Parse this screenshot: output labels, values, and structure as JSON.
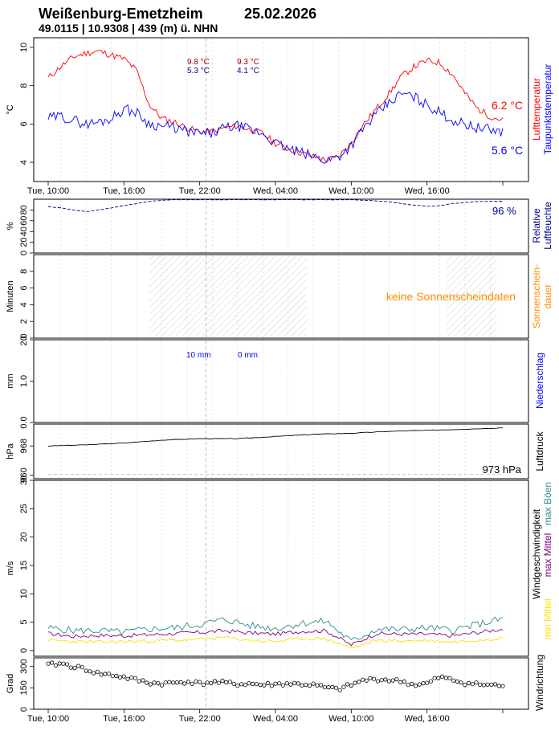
{
  "header": {
    "station": "Weißenburg-Emetzheim",
    "date": "25.02.2026",
    "coords": "49.0115 | 10.9308 | 439 (m) ü. NHN"
  },
  "colors": {
    "temp": "#ff0000",
    "dew": "#0000ff",
    "humidity": "#00008b",
    "sun": "#ff8c00",
    "precip": "#0000ff",
    "pressure": "#000000",
    "gust": "#2e8b8b",
    "wind_max": "#800080",
    "wind_min": "#ffe000",
    "dir": "#000000"
  },
  "x_axis": {
    "ticks": [
      "Tue, 10:00",
      "Tue, 16:00",
      "Tue, 22:00",
      "Wed, 04:00",
      "Wed, 10:00",
      "Wed, 16:00"
    ]
  },
  "panels": {
    "temperature": {
      "ylabel": "°C",
      "ticks": [
        "4",
        "6",
        "8",
        "10"
      ],
      "right_label_1": "Lufttemperatur",
      "right_label_2": "Taupunktstemperatur",
      "ann_temp_left": "9.8 °C",
      "ann_temp_right": "9.3 °C",
      "ann_dew_left": "5.3 °C",
      "ann_dew_right": "4.1 °C",
      "last_temp": "6.2 °C",
      "last_dew": "5.6 °C"
    },
    "humidity": {
      "ylabel": "%",
      "ticks": [
        "0",
        "20",
        "40",
        "60",
        "80"
      ],
      "right_label_1": "Relative",
      "right_label_2": "Luftfeuchte",
      "last": "96 %"
    },
    "sunshine": {
      "ylabel": "Minuten",
      "ticks": [
        "0",
        "2",
        "4",
        "6",
        "8"
      ],
      "right_label_1": "Sonnenschein-",
      "right_label_2": "dauer",
      "note": "keine Sonnenscheindaten"
    },
    "precipitation": {
      "ylabel": "mm",
      "ticks": [
        "0.0",
        "1.0",
        "2.0"
      ],
      "right_label": "Niederschlag",
      "ann_left": "10 mm",
      "ann_right": "0 mm"
    },
    "pressure": {
      "ylabel": "hPa",
      "ticks": [
        "960",
        "968"
      ],
      "right_label": "Luftdruck",
      "last": "973 hPa"
    },
    "wind": {
      "ylabel": "m/s",
      "ticks": [
        "0",
        "5",
        "10",
        "15",
        "20",
        "25",
        "30"
      ],
      "right_label_1": "Windgeschwindigkeit",
      "legend_gust": "max Böen",
      "legend_max": "max Mittel",
      "legend_min": "min Mittel"
    },
    "direction": {
      "ylabel": "Grad",
      "ticks": [
        "0",
        "150",
        "300"
      ],
      "right_label": "Windrichtung"
    }
  },
  "chart_data": [
    {
      "type": "line",
      "x_unit": "hours since Tue 10:00",
      "x": [
        0,
        1,
        2,
        3,
        4,
        5,
        6,
        7,
        8,
        9,
        10,
        11,
        12,
        13,
        14,
        15,
        16,
        17,
        18,
        19,
        20,
        21,
        22,
        23,
        24,
        25,
        26,
        27,
        28,
        29,
        30,
        31,
        32,
        33,
        34,
        35,
        36
      ],
      "series": [
        {
          "name": "Lufttemperatur",
          "values": [
            8.4,
            9.0,
            9.5,
            9.7,
            9.8,
            9.6,
            9.4,
            8.8,
            7.0,
            6.3,
            6.1,
            5.8,
            5.6,
            5.6,
            5.8,
            5.9,
            5.7,
            5.5,
            5.0,
            4.7,
            4.5,
            4.3,
            4.1,
            4.3,
            5.0,
            6.0,
            6.8,
            7.6,
            8.5,
            9.0,
            9.3,
            9.2,
            8.6,
            7.6,
            6.8,
            6.4,
            6.2
          ]
        },
        {
          "name": "Taupunktstemperatur",
          "values": [
            6.3,
            6.4,
            6.2,
            6.0,
            6.1,
            6.3,
            6.8,
            6.6,
            6.0,
            5.9,
            5.8,
            5.6,
            5.5,
            5.5,
            5.8,
            5.9,
            5.7,
            5.5,
            5.0,
            4.7,
            4.5,
            4.3,
            4.1,
            4.3,
            4.9,
            5.8,
            6.5,
            7.1,
            7.6,
            7.4,
            7.0,
            6.6,
            6.2,
            6.0,
            5.8,
            5.7,
            5.6
          ]
        }
      ],
      "ylim": [
        3,
        10.5
      ],
      "annotations": [
        "9.8 °C",
        "9.3 °C",
        "5.3 °C",
        "4.1 °C",
        "6.2 °C",
        "5.6 °C"
      ]
    },
    {
      "type": "line",
      "x": [
        0,
        1,
        2,
        3,
        4,
        5,
        6,
        7,
        8,
        9,
        10,
        11,
        12,
        13,
        14,
        15,
        16,
        17,
        18,
        19,
        20,
        21,
        22,
        23,
        24,
        25,
        26,
        27,
        28,
        29,
        30,
        31,
        32,
        33,
        34,
        35,
        36
      ],
      "series": [
        {
          "name": "Relative Luftfeuchte",
          "values": [
            86,
            84,
            80,
            77,
            80,
            84,
            88,
            92,
            96,
            98,
            99,
            99,
            99,
            99,
            99,
            99,
            99,
            99,
            99,
            99,
            99,
            99,
            99,
            99,
            99,
            98,
            97,
            95,
            92,
            89,
            87,
            88,
            92,
            94,
            96,
            96,
            96
          ]
        }
      ],
      "ylim": [
        0,
        100
      ],
      "annotations": [
        "96 %"
      ]
    },
    {
      "type": "area",
      "series": [],
      "ylim": [
        0,
        10
      ],
      "annotations": [
        "keine Sonnenscheindaten"
      ]
    },
    {
      "type": "bar",
      "series": [],
      "ylim": [
        0,
        2
      ],
      "annotations": [
        "10 mm",
        "0 mm"
      ]
    },
    {
      "type": "line",
      "x": [
        0,
        3,
        6,
        9,
        12,
        15,
        18,
        21,
        24,
        27,
        30,
        33,
        36
      ],
      "series": [
        {
          "name": "Luftdruck",
          "values": [
            968.0,
            968.3,
            968.8,
            969.6,
            970.0,
            970.0,
            970.6,
            971.2,
            971.5,
            972.0,
            972.3,
            972.6,
            973.0
          ]
        }
      ],
      "ylim": [
        959,
        974
      ],
      "annotations": [
        "973 hPa"
      ]
    },
    {
      "type": "line",
      "x": [
        0,
        2,
        4,
        6,
        8,
        10,
        12,
        14,
        16,
        18,
        20,
        22,
        24,
        26,
        28,
        30,
        32,
        34,
        36
      ],
      "series": [
        {
          "name": "max Böen",
          "values": [
            4.0,
            3.5,
            3.5,
            3.2,
            3.8,
            4.0,
            4.6,
            5.5,
            4.4,
            3.9,
            4.8,
            5.2,
            1.6,
            3.8,
            3.7,
            4.0,
            3.6,
            4.6,
            5.6
          ]
        },
        {
          "name": "max Mittel",
          "values": [
            3.0,
            2.5,
            2.7,
            2.6,
            2.8,
            3.0,
            3.2,
            3.5,
            3.1,
            2.9,
            3.4,
            3.5,
            1.0,
            3.0,
            2.9,
            2.9,
            2.6,
            3.2,
            3.8
          ]
        },
        {
          "name": "min Mittel",
          "values": [
            1.8,
            1.6,
            1.5,
            1.6,
            1.7,
            1.8,
            2.0,
            2.3,
            1.8,
            1.6,
            2.1,
            2.1,
            0.4,
            1.8,
            1.7,
            1.8,
            1.5,
            1.9,
            2.2
          ]
        }
      ],
      "ylim": [
        0,
        30
      ]
    },
    {
      "type": "scatter",
      "x": [
        0,
        1,
        2,
        3,
        4,
        5,
        6,
        7,
        8,
        9,
        10,
        11,
        12,
        13,
        14,
        15,
        16,
        17,
        18,
        19,
        20,
        21,
        22,
        23,
        24,
        25,
        26,
        27,
        28,
        29,
        30,
        31,
        32,
        33,
        34,
        35,
        36
      ],
      "series": [
        {
          "name": "Windrichtung",
          "values": [
            310,
            320,
            300,
            280,
            250,
            240,
            225,
            205,
            185,
            180,
            185,
            195,
            180,
            190,
            185,
            175,
            180,
            170,
            175,
            180,
            175,
            170,
            150,
            140,
            170,
            205,
            210,
            205,
            195,
            170,
            180,
            225,
            205,
            185,
            175,
            170,
            165
          ]
        }
      ],
      "ylim": [
        0,
        360
      ]
    }
  ]
}
